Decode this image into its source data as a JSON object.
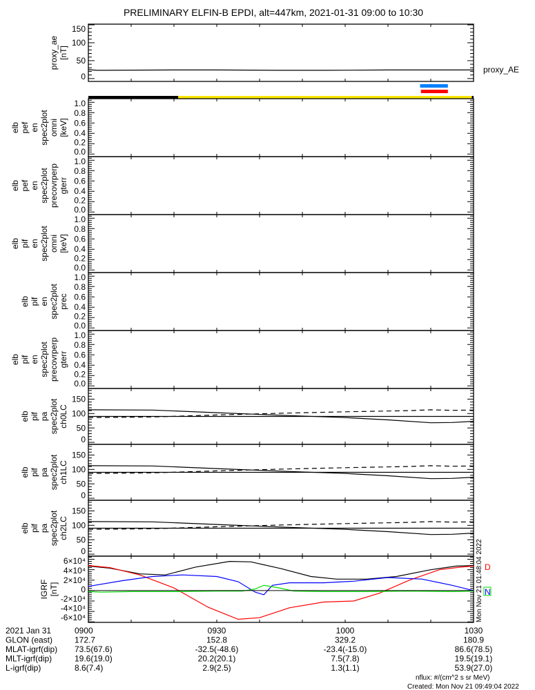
{
  "title": "PRELIMINARY ELFIN-B EPDI, alt=447km, 2021-01-31 09:00 to 10:30",
  "colors": {
    "black": "#000000",
    "yellow": "#ffe600",
    "blue": "#0080ff",
    "red": "#ff0000",
    "green": "#00dd00",
    "grf_blue": "#0000ff"
  },
  "side_labels": {
    "proxy_ae": "proxy_AE",
    "grf_D": "D",
    "grf_N": "N",
    "vertical_stamp": "Mon Nov 21 01:48:04 2022"
  },
  "footer": {
    "rows": [
      {
        "label": "2021 Jan 31",
        "values": [
          "0900",
          "0930",
          "1000",
          "1030"
        ]
      },
      {
        "label": "GLON (east)",
        "values": [
          "172.7",
          "152.8",
          "329.2",
          "180.9"
        ]
      },
      {
        "label": "MLAT-igrf(dip)",
        "values": [
          "73.5(67.6)",
          "-32.5(-48.6)",
          "-23.4(-15.0)",
          "86.6(78.5)"
        ]
      },
      {
        "label": "MLT-igrf(dip)",
        "values": [
          "19.6(19.0)",
          "20.2(20.1)",
          "7.5(7.8)",
          "19.5(19.1)"
        ]
      },
      {
        "label": "L-igrf(dip)",
        "values": [
          "8.6(7.4)",
          "2.9(2.5)",
          "1.3(1.1)",
          "53.9(27.0)"
        ]
      }
    ],
    "units": "nflux: #/(cm^2 s sr MeV)",
    "created": "Created: Mon Nov 21 09:49:04 2022"
  },
  "status_bars": {
    "orbit_bar": [
      {
        "from": 0,
        "to": 21,
        "color": "black"
      },
      {
        "from": 21,
        "to": 89.6,
        "color": "yellow"
      },
      {
        "from": 89.6,
        "to": 90,
        "color": "black"
      }
    ],
    "blue_bar": {
      "from": 77.5,
      "to": 84
    },
    "red_bar": {
      "from": 77.7,
      "to": 84
    }
  },
  "chart_data": [
    {
      "type": "line",
      "name": "proxy_ae",
      "ylabel": [
        "proxy_ae",
        "[nT]"
      ],
      "ylim": [
        -8,
        152
      ],
      "yticks": [
        0,
        50,
        100,
        150
      ],
      "ytick_labels": [
        "0",
        "50",
        "100",
        "150"
      ],
      "series": [
        {
          "name": "proxy_AE",
          "color": "#000000",
          "dash": false,
          "x": [
            0,
            2,
            3,
            20,
            30,
            45,
            55,
            70,
            90
          ],
          "y": [
            25,
            23,
            23,
            24,
            24,
            23,
            23,
            24,
            24
          ]
        }
      ]
    },
    {
      "type": "line",
      "name": "elb_pef_en_spec2plot_omni",
      "ylabel": [
        "elb",
        "pef",
        "en",
        "spec2plot",
        "omni",
        "[keV]"
      ],
      "ylim": [
        -0.05,
        1.07
      ],
      "yticks": [
        0,
        0.2,
        0.4,
        0.6,
        0.8,
        1.0
      ],
      "ytick_labels": [
        "0.0",
        "0.2",
        "0.4",
        "0.6",
        "0.8",
        "1.0"
      ],
      "series": []
    },
    {
      "type": "line",
      "name": "elb_pef_en_spec2plot_precovrperp_gterr",
      "ylabel": [
        "elb",
        "pef",
        "en",
        "spec2plot",
        "precovrperp",
        "gterr"
      ],
      "ylim": [
        -0.05,
        1.07
      ],
      "yticks": [
        0,
        0.2,
        0.4,
        0.6,
        0.8,
        1.0
      ],
      "ytick_labels": [
        "0.0",
        "0.2",
        "0.4",
        "0.6",
        "0.8",
        "1.0"
      ],
      "series": []
    },
    {
      "type": "line",
      "name": "elb_pif_en_spec2plot_omni",
      "ylabel": [
        "elb",
        "pif",
        "en",
        "spec2plot",
        "omni",
        "[keV]"
      ],
      "ylim": [
        -0.05,
        1.07
      ],
      "yticks": [
        0,
        0.2,
        0.4,
        0.6,
        0.8,
        1.0
      ],
      "ytick_labels": [
        "0.0",
        "0.2",
        "0.4",
        "0.6",
        "0.8",
        "1.0"
      ],
      "series": []
    },
    {
      "type": "line",
      "name": "elb_pif_en_spec2plot_prec",
      "ylabel": [
        "elb",
        "pif",
        "en",
        "spec2plot",
        "prec"
      ],
      "ylim": [
        -0.05,
        1.07
      ],
      "yticks": [
        0,
        0.2,
        0.4,
        0.6,
        0.8,
        1.0
      ],
      "ytick_labels": [
        "0.0",
        "0.2",
        "0.4",
        "0.6",
        "0.8",
        "1.0"
      ],
      "series": []
    },
    {
      "type": "line",
      "name": "elb_pif_en_spec2plot_precovrperp_gterr",
      "ylabel": [
        "elb",
        "pif",
        "en",
        "spec2plot",
        "precovrperp",
        "gterr"
      ],
      "ylim": [
        -0.05,
        1.07
      ],
      "yticks": [
        0,
        0.2,
        0.4,
        0.6,
        0.8,
        1.0
      ],
      "ytick_labels": [
        "0.0",
        "0.2",
        "0.4",
        "0.6",
        "0.8",
        "1.0"
      ],
      "series": []
    },
    {
      "type": "line",
      "name": "elb_pif_pa_spec2plot_ch0LC",
      "ylabel": [
        "elb",
        "pif",
        "pa",
        "spec2plot",
        "ch0LC"
      ],
      "ylim": [
        -7,
        187
      ],
      "yticks": [
        0,
        50,
        100,
        150
      ],
      "ytick_labels": [
        "0",
        "50",
        "100",
        "150"
      ],
      "series": [
        {
          "name": "loss_cone",
          "color": "#000000",
          "dash": false,
          "x": [
            0,
            15,
            30,
            45,
            60,
            70,
            80,
            85,
            90
          ],
          "y": [
            113,
            112,
            103,
            94,
            86,
            78,
            68,
            69,
            73
          ]
        },
        {
          "name": "perp",
          "color": "#000000",
          "dash": false,
          "x": [
            0,
            90
          ],
          "y": [
            90,
            90
          ]
        },
        {
          "name": "anti_loss_cone",
          "color": "#000000",
          "dash": true,
          "x": [
            0,
            15,
            30,
            45,
            60,
            75,
            80,
            85,
            90
          ],
          "y": [
            86,
            88,
            95,
            101,
            106,
            110,
            113,
            111,
            112
          ]
        }
      ]
    },
    {
      "type": "line",
      "name": "elb_pif_pa_spec2plot_ch1LC",
      "ylabel": [
        "elb",
        "pif",
        "pa",
        "spec2plot",
        "ch1LC"
      ],
      "ylim": [
        -7,
        187
      ],
      "yticks": [
        0,
        50,
        100,
        150
      ],
      "ytick_labels": [
        "0",
        "50",
        "100",
        "150"
      ],
      "series": [
        {
          "name": "loss_cone",
          "color": "#000000",
          "dash": false,
          "x": [
            0,
            15,
            30,
            45,
            60,
            70,
            80,
            85,
            90
          ],
          "y": [
            113,
            112,
            103,
            94,
            86,
            78,
            68,
            69,
            73
          ]
        },
        {
          "name": "perp",
          "color": "#000000",
          "dash": false,
          "x": [
            0,
            90
          ],
          "y": [
            90,
            90
          ]
        },
        {
          "name": "anti_loss_cone",
          "color": "#000000",
          "dash": true,
          "x": [
            0,
            15,
            30,
            45,
            60,
            75,
            80,
            85,
            90
          ],
          "y": [
            86,
            88,
            95,
            101,
            106,
            110,
            113,
            111,
            112
          ]
        }
      ]
    },
    {
      "type": "line",
      "name": "elb_pif_pa_spec2plot_ch2LC",
      "ylabel": [
        "elb",
        "pif",
        "pa",
        "spec2plot",
        "ch2LC"
      ],
      "ylim": [
        -7,
        187
      ],
      "yticks": [
        0,
        50,
        100,
        150
      ],
      "ytick_labels": [
        "0",
        "50",
        "100",
        "150"
      ],
      "series": [
        {
          "name": "loss_cone",
          "color": "#000000",
          "dash": false,
          "x": [
            0,
            15,
            30,
            45,
            60,
            70,
            80,
            85,
            90
          ],
          "y": [
            113,
            112,
            103,
            94,
            86,
            78,
            68,
            69,
            73
          ]
        },
        {
          "name": "perp",
          "color": "#000000",
          "dash": false,
          "x": [
            0,
            90
          ],
          "y": [
            90,
            90
          ]
        },
        {
          "name": "anti_loss_cone",
          "color": "#000000",
          "dash": true,
          "x": [
            0,
            15,
            30,
            45,
            60,
            75,
            80,
            85,
            90
          ],
          "y": [
            86,
            88,
            95,
            101,
            106,
            110,
            113,
            111,
            112
          ]
        }
      ]
    },
    {
      "type": "line",
      "name": "igrf",
      "ylabel": [
        "IGRF",
        "[nT]"
      ],
      "ylim": [
        -61000,
        66000
      ],
      "yticks": [
        -60000,
        -40000,
        -20000,
        0,
        20000,
        40000,
        60000
      ],
      "ytick_labels": [
        "-6×10⁴",
        "-4×10⁴",
        "-2×10⁴",
        "0",
        "2×10⁴",
        "4×10⁴",
        "6×10⁴"
      ],
      "series": [
        {
          "name": "total",
          "color": "#000000",
          "dash": false,
          "x": [
            0,
            5,
            12,
            18,
            25,
            33,
            38,
            45,
            52,
            58,
            65,
            72,
            80,
            86,
            90
          ],
          "y": [
            47000,
            43000,
            32000,
            30000,
            45000,
            56000,
            55000,
            42000,
            27000,
            22000,
            22000,
            27000,
            40000,
            47000,
            48000
          ]
        },
        {
          "name": "D",
          "color": "#ff0000",
          "dash": false,
          "x": [
            0,
            5,
            12,
            20,
            28,
            35,
            40,
            47,
            55,
            62,
            68,
            75,
            82,
            87,
            90
          ],
          "y": [
            48000,
            44000,
            30000,
            5000,
            -32000,
            -55000,
            -52000,
            -33000,
            -22000,
            -20000,
            -5000,
            20000,
            40000,
            45000,
            47000
          ]
        },
        {
          "name": "blue_component",
          "color": "#0000ff",
          "dash": false,
          "x": [
            0,
            8,
            15,
            22,
            30,
            35,
            39,
            41,
            43,
            47,
            55,
            62,
            70,
            78,
            85,
            90
          ],
          "y": [
            8000,
            19000,
            27000,
            30000,
            27000,
            17000,
            -3000,
            -8000,
            10000,
            15000,
            15000,
            18000,
            25000,
            22000,
            10000,
            0
          ]
        },
        {
          "name": "N",
          "color": "#00dd00",
          "dash": false,
          "x": [
            0,
            3,
            10,
            20,
            30,
            36,
            39,
            41,
            44,
            48,
            55,
            65,
            75,
            85,
            90
          ],
          "y": [
            -2000,
            -3000,
            -2000,
            -2000,
            -1000,
            -1000,
            3000,
            10000,
            6000,
            -1000,
            -2000,
            -2000,
            -1000,
            -2000,
            -1000
          ]
        }
      ]
    }
  ]
}
